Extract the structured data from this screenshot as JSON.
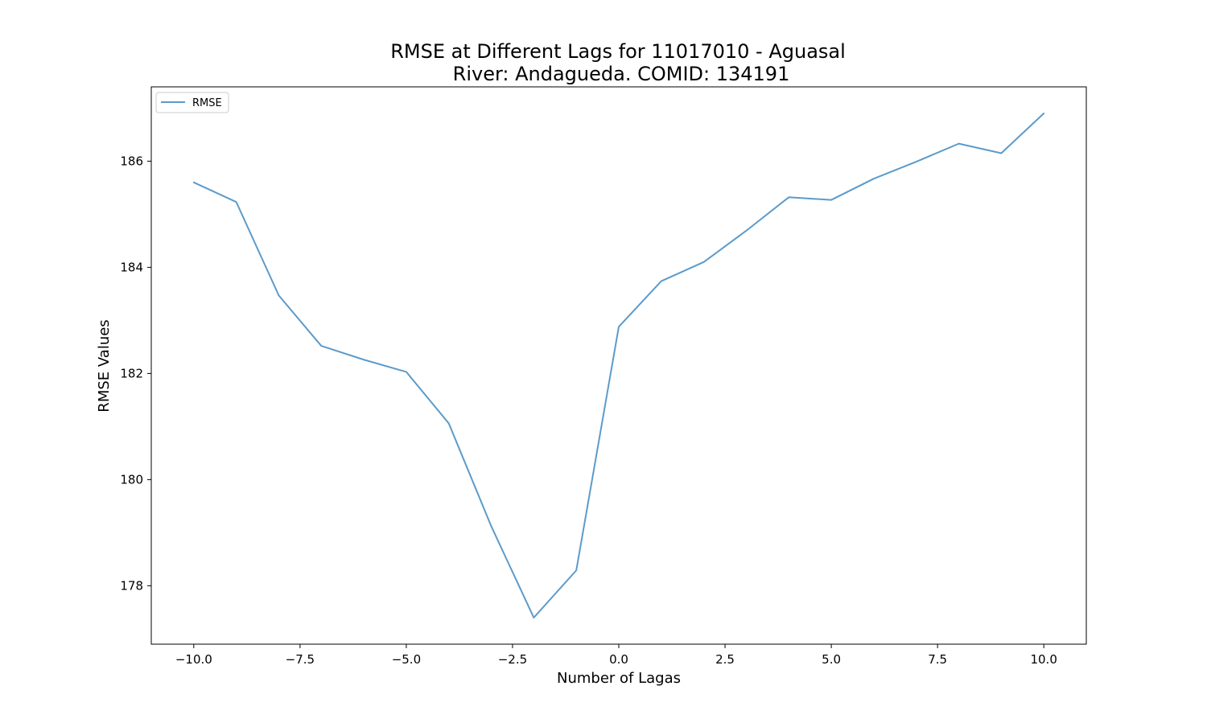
{
  "chart_data": {
    "type": "line",
    "title": "RMSE at Different Lags for 11017010 - Aguasal",
    "subtitle": "River: Andagueda. COMID: 134191",
    "xlabel": "Number of Lagas",
    "ylabel": "RMSE Values",
    "xlim": [
      -11,
      11
    ],
    "ylim": [
      176.9,
      187.4
    ],
    "xticks": [
      -10.0,
      -7.5,
      -5.0,
      -2.5,
      0.0,
      2.5,
      5.0,
      7.5,
      10.0
    ],
    "xtick_labels": [
      "−10.0",
      "−7.5",
      "−5.0",
      "−2.5",
      "0.0",
      "2.5",
      "5.0",
      "7.5",
      "10.0"
    ],
    "yticks": [
      178,
      180,
      182,
      184,
      186
    ],
    "ytick_labels": [
      "178",
      "180",
      "182",
      "184",
      "186"
    ],
    "grid": false,
    "legend_position": "top-left",
    "series": [
      {
        "name": "RMSE",
        "color": "#5b9bcb",
        "x": [
          -10,
          -9,
          -8,
          -7,
          -6,
          -5,
          -4,
          -3,
          -2,
          -1,
          0,
          1,
          2,
          3,
          4,
          5,
          6,
          7,
          8,
          9,
          10
        ],
        "y": [
          185.6,
          185.23,
          183.47,
          182.52,
          182.26,
          182.03,
          181.06,
          179.12,
          177.4,
          178.29,
          182.88,
          183.74,
          184.1,
          184.69,
          185.32,
          185.27,
          185.67,
          185.99,
          186.33,
          186.15,
          186.9
        ]
      }
    ]
  }
}
